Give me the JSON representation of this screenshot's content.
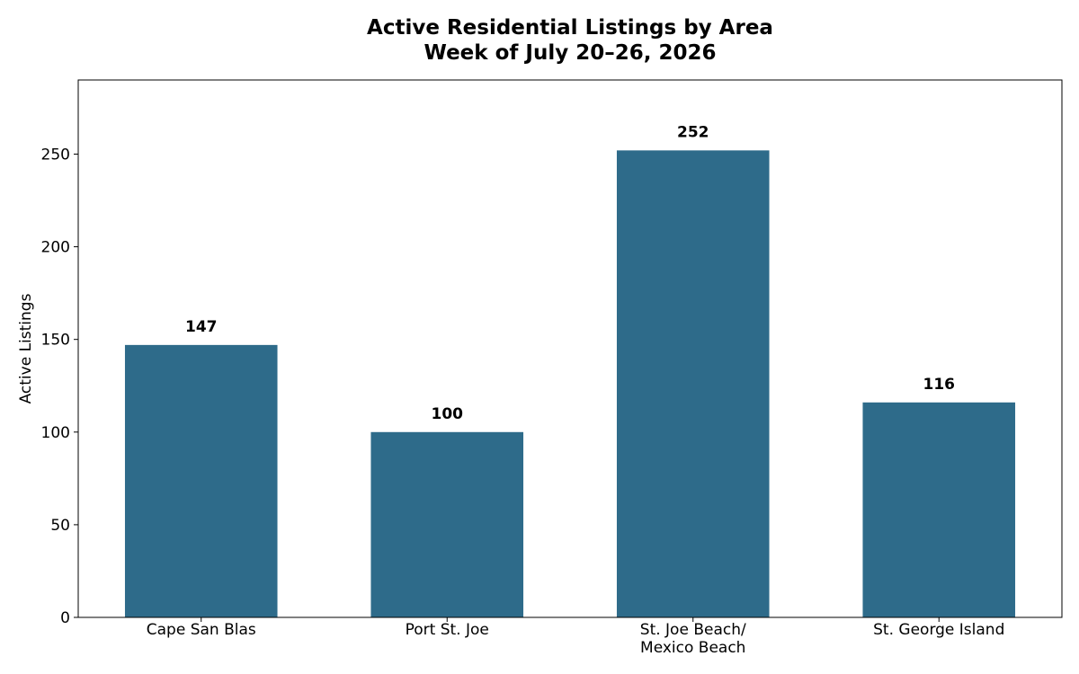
{
  "chart_data": {
    "type": "bar",
    "title": "Active Residential Listings by Area",
    "subtitle": "Week of July 20–26, 2026",
    "y_label": "Active Listings",
    "categories": [
      "Cape San Blas",
      "Port St. Joe",
      "St. Joe Beach/\nMexico Beach",
      "St. George Island"
    ],
    "values": [
      147,
      100,
      252,
      116
    ],
    "color": "#2e6b8a",
    "ylim": [
      0,
      290
    ],
    "yticks": [
      0,
      50,
      100,
      150,
      200,
      250
    ],
    "grid": false
  }
}
